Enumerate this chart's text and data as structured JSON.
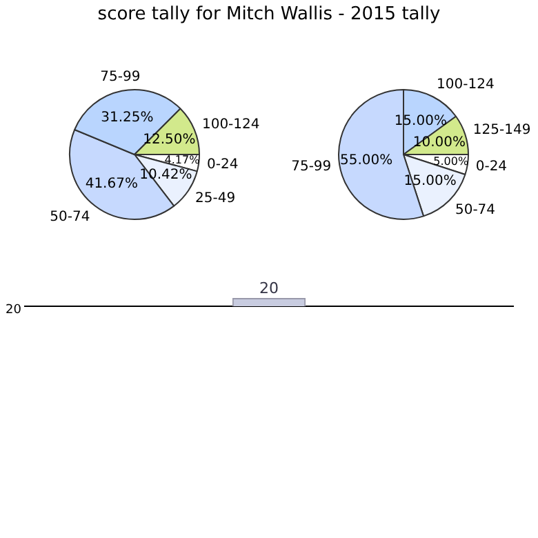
{
  "chart_data": [
    {
      "type": "pie",
      "title": "score tally for Mitch Wallis - 2015 tally",
      "categories": [
        "0-24",
        "25-49",
        "50-74",
        "75-99",
        "100-124"
      ],
      "values": [
        4.17,
        10.42,
        41.67,
        31.25,
        12.5
      ],
      "value_labels": [
        "4.17%",
        "10.42%",
        "41.67%",
        "31.25%",
        "12.50%"
      ],
      "colors": [
        "#ffffff",
        "#eaf1fe",
        "#c6d9fe",
        "#b9d5fe",
        "#d2e98c"
      ]
    },
    {
      "type": "pie",
      "categories": [
        "0-24",
        "50-74",
        "75-99",
        "100-124",
        "125-149"
      ],
      "values": [
        5,
        15,
        55,
        15,
        10
      ],
      "value_labels": [
        "5.00%",
        "15.00%",
        "55.00%",
        "15.00%",
        "10.00%"
      ],
      "colors": [
        "#ffffff",
        "#eaf1fe",
        "#c6d9fe",
        "#b9d5fe",
        "#d2e98c"
      ]
    },
    {
      "type": "bar",
      "categories": [
        null
      ],
      "values": [
        20
      ],
      "data_labels": true,
      "color": "#c8cce0",
      "annotations": [
        "20"
      ]
    }
  ]
}
